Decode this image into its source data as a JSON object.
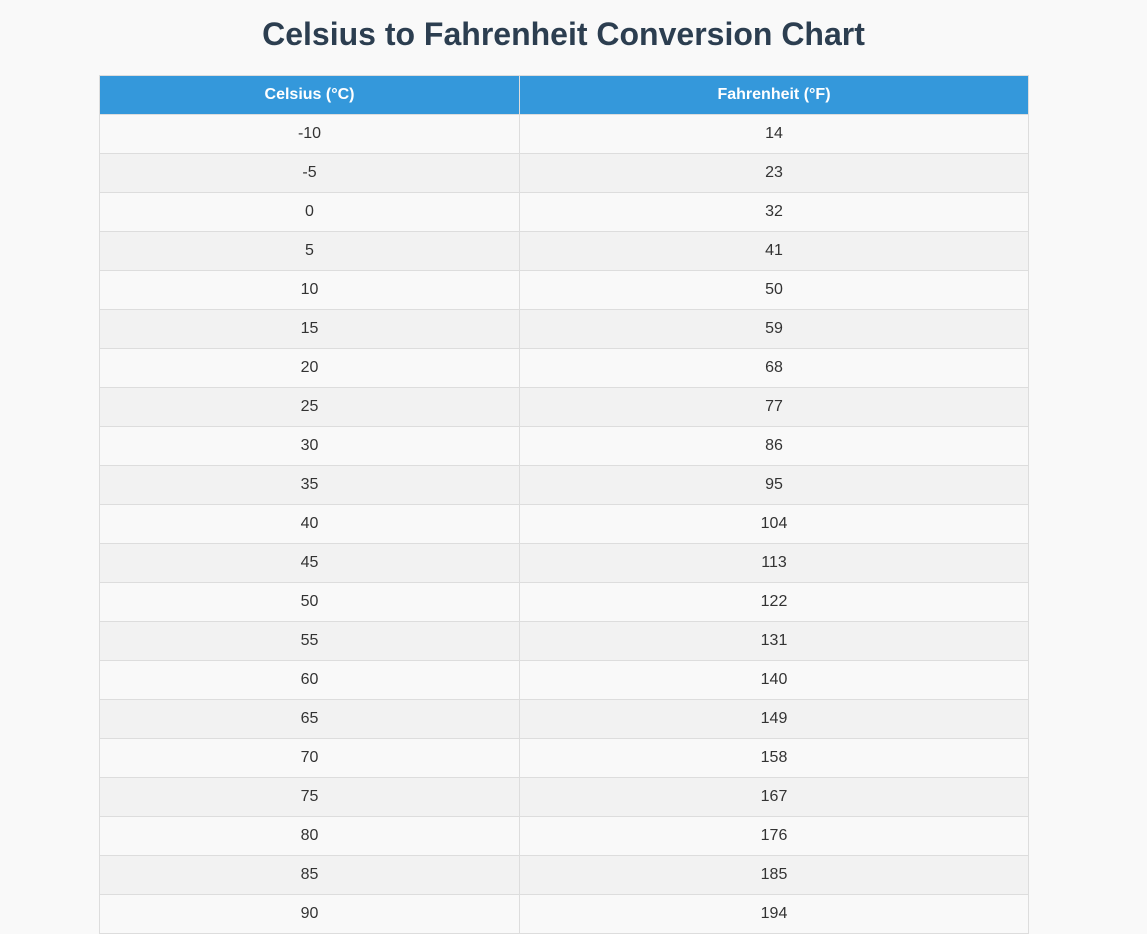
{
  "page": {
    "title": "Celsius to Fahrenheit Conversion Chart"
  },
  "table": {
    "headers": [
      "Celsius (°C)",
      "Fahrenheit (°F)"
    ],
    "rows": [
      [
        "-10",
        "14"
      ],
      [
        "-5",
        "23"
      ],
      [
        "0",
        "32"
      ],
      [
        "5",
        "41"
      ],
      [
        "10",
        "50"
      ],
      [
        "15",
        "59"
      ],
      [
        "20",
        "68"
      ],
      [
        "25",
        "77"
      ],
      [
        "30",
        "86"
      ],
      [
        "35",
        "95"
      ],
      [
        "40",
        "104"
      ],
      [
        "45",
        "113"
      ],
      [
        "50",
        "122"
      ],
      [
        "55",
        "131"
      ],
      [
        "60",
        "140"
      ],
      [
        "65",
        "149"
      ],
      [
        "70",
        "158"
      ],
      [
        "75",
        "167"
      ],
      [
        "80",
        "176"
      ],
      [
        "85",
        "185"
      ],
      [
        "90",
        "194"
      ]
    ]
  },
  "colors": {
    "header_bg": "#3498db",
    "title": "#2c3e50",
    "row_alt": "#f2f2f2",
    "border": "#dddddd"
  }
}
